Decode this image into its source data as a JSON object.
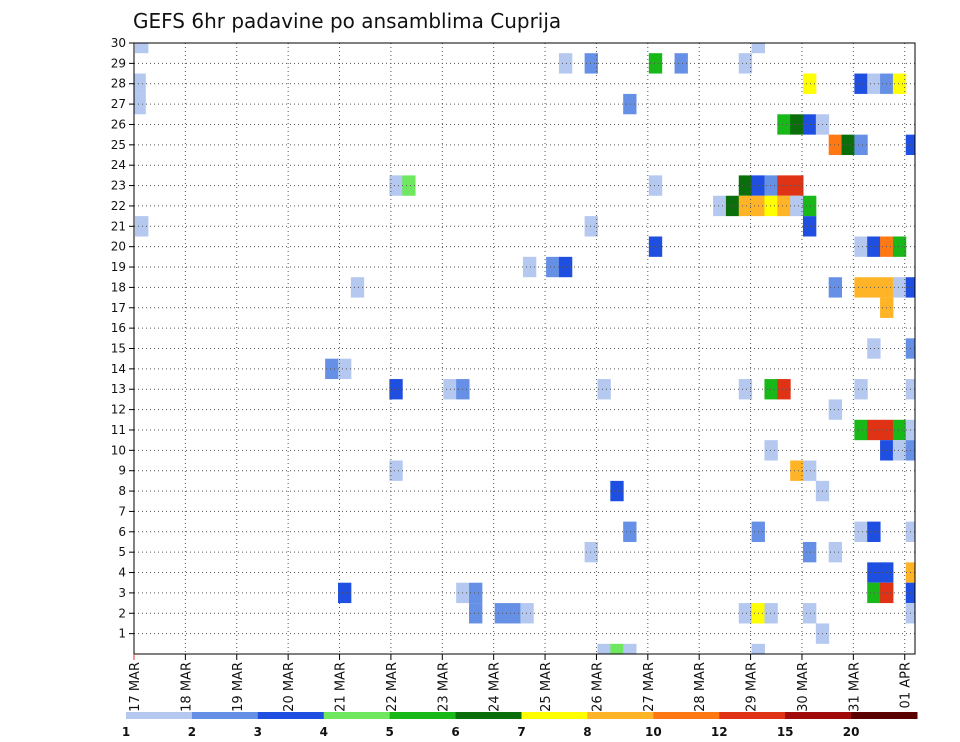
{
  "chart_data": {
    "type": "heatmap",
    "title": "GEFS 6hr padavine po ansamblima Cuprija",
    "x_tick_labels": [
      "17 MAR",
      "18 MAR",
      "19 MAR",
      "20 MAR",
      "21 MAR",
      "22 MAR",
      "23 MAR",
      "24 MAR",
      "25 MAR",
      "26 MAR",
      "27 MAR",
      "28 MAR",
      "29 MAR",
      "30 MAR",
      "31 MAR",
      "01 APR"
    ],
    "y_tick_labels": [
      "1",
      "2",
      "3",
      "4",
      "5",
      "6",
      "7",
      "8",
      "9",
      "10",
      "11",
      "12",
      "13",
      "14",
      "15",
      "16",
      "17",
      "18",
      "19",
      "20",
      "21",
      "22",
      "23",
      "24",
      "25",
      "26",
      "27",
      "28",
      "29",
      "30"
    ],
    "x_range": [
      0,
      15.2
    ],
    "y_range": [
      0,
      30
    ],
    "grid": true,
    "color_scale": {
      "labels": [
        "1",
        "2",
        "3",
        "4",
        "5",
        "6",
        "7",
        "8",
        "10",
        "12",
        "15",
        "20"
      ],
      "colors": [
        "#b4c8f0",
        "#6690e6",
        "#1f4fe0",
        "#6fe860",
        "#18b818",
        "#0a6e0a",
        "#ffff00",
        "#ffb428",
        "#ff7814",
        "#e03214",
        "#a00a0a",
        "#5a0000"
      ]
    },
    "cells": [
      [
        0.15,
        30,
        0
      ],
      [
        0.1,
        28,
        0
      ],
      [
        0.1,
        27,
        0
      ],
      [
        0.15,
        21,
        0
      ],
      [
        4.35,
        18,
        0
      ],
      [
        3.85,
        14,
        1
      ],
      [
        4.1,
        14,
        0
      ],
      [
        4.1,
        3,
        2
      ],
      [
        5.1,
        23,
        0
      ],
      [
        5.35,
        23,
        3
      ],
      [
        5.1,
        13,
        2
      ],
      [
        5.1,
        9,
        0
      ],
      [
        6.15,
        13,
        0
      ],
      [
        6.4,
        13,
        1
      ],
      [
        6.4,
        3,
        0
      ],
      [
        6.65,
        3,
        1
      ],
      [
        6.65,
        2,
        1
      ],
      [
        7.15,
        2,
        1
      ],
      [
        7.4,
        2,
        1
      ],
      [
        7.65,
        2,
        0
      ],
      [
        7.7,
        19,
        0
      ],
      [
        8.15,
        19,
        1
      ],
      [
        8.4,
        19,
        2
      ],
      [
        8.4,
        29,
        0
      ],
      [
        8.9,
        29,
        1
      ],
      [
        8.9,
        21,
        0
      ],
      [
        8.9,
        5,
        0
      ],
      [
        9.15,
        13,
        0
      ],
      [
        9.15,
        0,
        0
      ],
      [
        9.4,
        0,
        3
      ],
      [
        9.4,
        8,
        2
      ],
      [
        9.65,
        27,
        1
      ],
      [
        9.65,
        6,
        1
      ],
      [
        9.65,
        0,
        0
      ],
      [
        10.15,
        29,
        4
      ],
      [
        10.15,
        23,
        0
      ],
      [
        10.15,
        20,
        2
      ],
      [
        10.65,
        29,
        1
      ],
      [
        11.4,
        22,
        0
      ],
      [
        11.65,
        22,
        5
      ],
      [
        11.9,
        29,
        0
      ],
      [
        11.9,
        23,
        5
      ],
      [
        11.9,
        22,
        7
      ],
      [
        11.9,
        13,
        0
      ],
      [
        11.9,
        2,
        0
      ],
      [
        12.15,
        23,
        2
      ],
      [
        12.15,
        22,
        7
      ],
      [
        12.15,
        6,
        1
      ],
      [
        12.15,
        2,
        6
      ],
      [
        12.15,
        0,
        0
      ],
      [
        12.15,
        30,
        0
      ],
      [
        12.4,
        23,
        1
      ],
      [
        12.4,
        22,
        6
      ],
      [
        12.4,
        13,
        4
      ],
      [
        12.4,
        10,
        0
      ],
      [
        12.4,
        2,
        0
      ],
      [
        12.65,
        26,
        4
      ],
      [
        12.65,
        23,
        9
      ],
      [
        12.65,
        22,
        7
      ],
      [
        12.65,
        13,
        9
      ],
      [
        12.9,
        26,
        5
      ],
      [
        12.9,
        23,
        9
      ],
      [
        12.9,
        22,
        0
      ],
      [
        12.9,
        9,
        7
      ],
      [
        13.15,
        28,
        6
      ],
      [
        13.15,
        26,
        2
      ],
      [
        13.15,
        22,
        4
      ],
      [
        13.15,
        9,
        0
      ],
      [
        13.15,
        5,
        1
      ],
      [
        13.15,
        2,
        0
      ],
      [
        13.15,
        21,
        2
      ],
      [
        13.4,
        26,
        0
      ],
      [
        13.4,
        8,
        0
      ],
      [
        13.4,
        1,
        0
      ],
      [
        13.65,
        25,
        8
      ],
      [
        13.9,
        25,
        5
      ],
      [
        13.65,
        18,
        1
      ],
      [
        13.65,
        12,
        0
      ],
      [
        13.65,
        5,
        0
      ],
      [
        14.15,
        28,
        2
      ],
      [
        14.15,
        25,
        1
      ],
      [
        14.15,
        20,
        0
      ],
      [
        14.15,
        18,
        7
      ],
      [
        14.15,
        13,
        0
      ],
      [
        14.15,
        11,
        4
      ],
      [
        14.15,
        6,
        0
      ],
      [
        14.4,
        28,
        0
      ],
      [
        14.4,
        20,
        2
      ],
      [
        14.4,
        18,
        7
      ],
      [
        14.4,
        15,
        0
      ],
      [
        14.4,
        11,
        9
      ],
      [
        14.4,
        6,
        2
      ],
      [
        14.4,
        4,
        2
      ],
      [
        14.4,
        3,
        4
      ],
      [
        14.65,
        28,
        1
      ],
      [
        14.65,
        20,
        8
      ],
      [
        14.65,
        18,
        7
      ],
      [
        14.65,
        17,
        7
      ],
      [
        14.65,
        11,
        9
      ],
      [
        14.65,
        10,
        2
      ],
      [
        14.65,
        4,
        2
      ],
      [
        14.65,
        3,
        9
      ],
      [
        14.9,
        28,
        6
      ],
      [
        14.9,
        20,
        4
      ],
      [
        14.9,
        18,
        0
      ],
      [
        14.9,
        11,
        4
      ],
      [
        14.9,
        10,
        0
      ],
      [
        15.15,
        25,
        2
      ],
      [
        15.15,
        18,
        2
      ],
      [
        15.15,
        15,
        1
      ],
      [
        15.15,
        13,
        0
      ],
      [
        15.15,
        11,
        0
      ],
      [
        15.15,
        10,
        1
      ],
      [
        15.15,
        6,
        0
      ],
      [
        15.15,
        4,
        7
      ],
      [
        15.15,
        3,
        2
      ],
      [
        15.15,
        2,
        0
      ]
    ]
  }
}
